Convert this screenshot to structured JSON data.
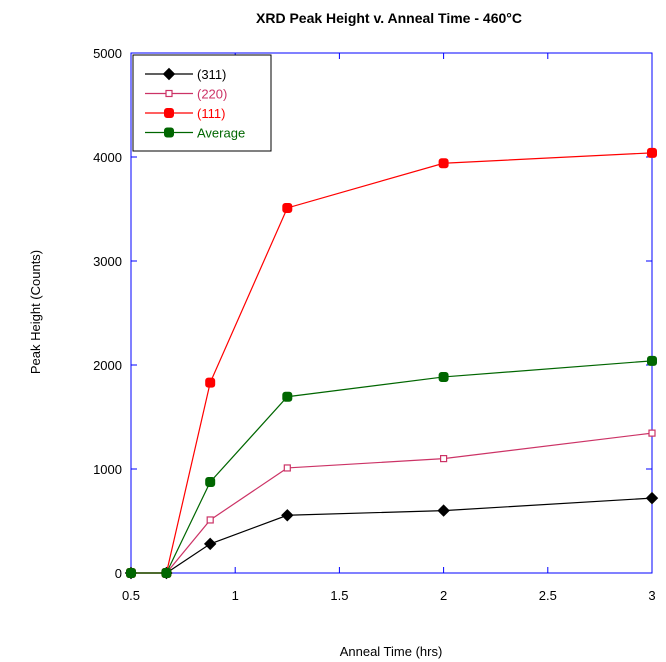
{
  "chart_data": {
    "type": "line",
    "title": "XRD Peak Height v. Anneal Time - 460°C",
    "xlabel": "Anneal Time (hrs)",
    "ylabel": "Peak Height (Counts)",
    "xlim": [
      0.5,
      3
    ],
    "ylim": [
      0,
      5000
    ],
    "x_ticks": [
      "0.5",
      "1",
      "1.5",
      "2",
      "2.5",
      "3"
    ],
    "y_ticks": [
      "0",
      "1000",
      "2000",
      "3000",
      "4000",
      "5000"
    ],
    "grid": false,
    "legend_position": "top-left",
    "x": [
      0.5,
      0.67,
      0.88,
      1.25,
      2.0,
      3.0
    ],
    "series": [
      {
        "name": "(311)",
        "color": "#000000",
        "marker": "diamond-filled",
        "values": [
          0,
          0,
          280,
          555,
          600,
          720
        ]
      },
      {
        "name": "(220)",
        "color": "#cc3366",
        "marker": "square-open",
        "values": [
          0,
          0,
          510,
          1010,
          1100,
          1345
        ]
      },
      {
        "name": "(111)",
        "color": "#ff0000",
        "marker": "square-filled",
        "values": [
          0,
          0,
          1830,
          3510,
          3940,
          4040
        ]
      },
      {
        "name": "Average",
        "color": "#006600",
        "marker": "square-filled",
        "values": [
          0,
          0,
          875,
          1695,
          1885,
          2040
        ]
      }
    ]
  }
}
